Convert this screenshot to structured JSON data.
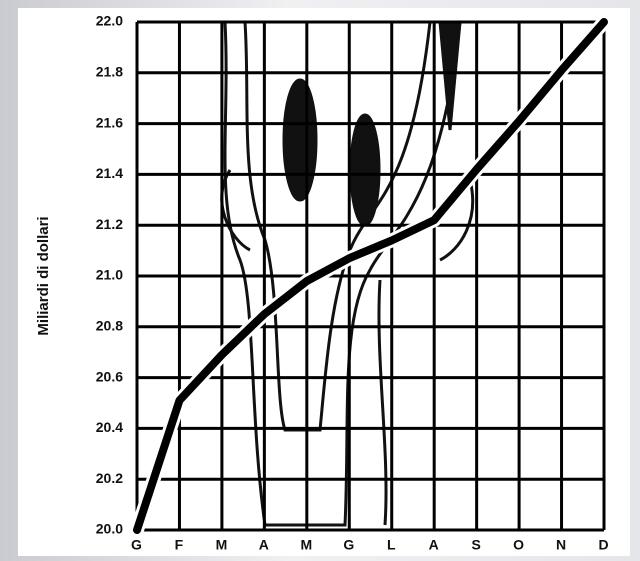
{
  "chart_data": {
    "type": "line",
    "y_label": "Miliardi di dollari",
    "categories": [
      "G",
      "F",
      "M",
      "A",
      "M",
      "G",
      "L",
      "A",
      "S",
      "O",
      "N",
      "D"
    ],
    "values": [
      20.0,
      20.51,
      20.69,
      20.85,
      20.98,
      21.07,
      21.14,
      21.22,
      21.42,
      21.61,
      21.81,
      22.0
    ],
    "color": "#000000",
    "ylim": [
      20,
      22
    ],
    "yticks": [
      {
        "value": 20,
        "label": "20.0"
      },
      20.2,
      20.4,
      20.6,
      20.8,
      {
        "value": 21,
        "label": "21.0"
      },
      21.2,
      21.4,
      21.6,
      21.8,
      {
        "value": 22,
        "label": "22.0"
      }
    ],
    "grid": true
  }
}
